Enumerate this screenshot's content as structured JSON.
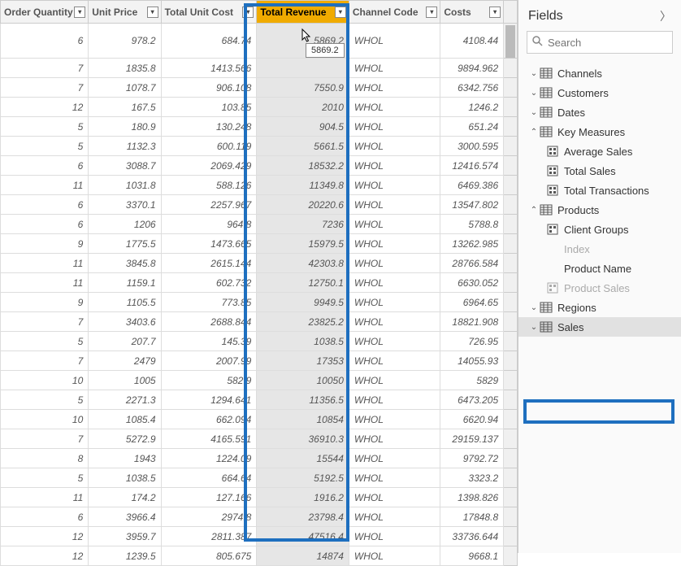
{
  "columns": {
    "order_quantity": "Order Quantity",
    "unit_price": "Unit Price",
    "total_unit_cost": "Total Unit Cost",
    "total_revenue": "Total Revenue",
    "channel_code": "Channel Code",
    "costs": "Costs"
  },
  "selected_column": "total_revenue",
  "highlight_color": "#1e6fbf",
  "selected_header_color": "#f0ab00",
  "tooltip_value": "5869.2",
  "rows": [
    {
      "oq": "6",
      "up": "978.2",
      "tuc": "684.74",
      "tr": "5869.2",
      "cc": "WHOL",
      "co": "4108.44"
    },
    {
      "oq": "7",
      "up": "1835.8",
      "tuc": "1413.566",
      "tr": "",
      "cc": "WHOL",
      "co": "9894.962"
    },
    {
      "oq": "7",
      "up": "1078.7",
      "tuc": "906.108",
      "tr": "7550.9",
      "cc": "WHOL",
      "co": "6342.756"
    },
    {
      "oq": "12",
      "up": "167.5",
      "tuc": "103.85",
      "tr": "2010",
      "cc": "WHOL",
      "co": "1246.2"
    },
    {
      "oq": "5",
      "up": "180.9",
      "tuc": "130.248",
      "tr": "904.5",
      "cc": "WHOL",
      "co": "651.24"
    },
    {
      "oq": "5",
      "up": "1132.3",
      "tuc": "600.119",
      "tr": "5661.5",
      "cc": "WHOL",
      "co": "3000.595"
    },
    {
      "oq": "6",
      "up": "3088.7",
      "tuc": "2069.429",
      "tr": "18532.2",
      "cc": "WHOL",
      "co": "12416.574"
    },
    {
      "oq": "11",
      "up": "1031.8",
      "tuc": "588.126",
      "tr": "11349.8",
      "cc": "WHOL",
      "co": "6469.386"
    },
    {
      "oq": "6",
      "up": "3370.1",
      "tuc": "2257.967",
      "tr": "20220.6",
      "cc": "WHOL",
      "co": "13547.802"
    },
    {
      "oq": "6",
      "up": "1206",
      "tuc": "964.8",
      "tr": "7236",
      "cc": "WHOL",
      "co": "5788.8"
    },
    {
      "oq": "9",
      "up": "1775.5",
      "tuc": "1473.665",
      "tr": "15979.5",
      "cc": "WHOL",
      "co": "13262.985"
    },
    {
      "oq": "11",
      "up": "3845.8",
      "tuc": "2615.144",
      "tr": "42303.8",
      "cc": "WHOL",
      "co": "28766.584"
    },
    {
      "oq": "11",
      "up": "1159.1",
      "tuc": "602.732",
      "tr": "12750.1",
      "cc": "WHOL",
      "co": "6630.052"
    },
    {
      "oq": "9",
      "up": "1105.5",
      "tuc": "773.85",
      "tr": "9949.5",
      "cc": "WHOL",
      "co": "6964.65"
    },
    {
      "oq": "7",
      "up": "3403.6",
      "tuc": "2688.844",
      "tr": "23825.2",
      "cc": "WHOL",
      "co": "18821.908"
    },
    {
      "oq": "5",
      "up": "207.7",
      "tuc": "145.39",
      "tr": "1038.5",
      "cc": "WHOL",
      "co": "726.95"
    },
    {
      "oq": "7",
      "up": "2479",
      "tuc": "2007.99",
      "tr": "17353",
      "cc": "WHOL",
      "co": "14055.93"
    },
    {
      "oq": "10",
      "up": "1005",
      "tuc": "582.9",
      "tr": "10050",
      "cc": "WHOL",
      "co": "5829"
    },
    {
      "oq": "5",
      "up": "2271.3",
      "tuc": "1294.641",
      "tr": "11356.5",
      "cc": "WHOL",
      "co": "6473.205"
    },
    {
      "oq": "10",
      "up": "1085.4",
      "tuc": "662.094",
      "tr": "10854",
      "cc": "WHOL",
      "co": "6620.94"
    },
    {
      "oq": "7",
      "up": "5272.9",
      "tuc": "4165.591",
      "tr": "36910.3",
      "cc": "WHOL",
      "co": "29159.137"
    },
    {
      "oq": "8",
      "up": "1943",
      "tuc": "1224.09",
      "tr": "15544",
      "cc": "WHOL",
      "co": "9792.72"
    },
    {
      "oq": "5",
      "up": "1038.5",
      "tuc": "664.64",
      "tr": "5192.5",
      "cc": "WHOL",
      "co": "3323.2"
    },
    {
      "oq": "11",
      "up": "174.2",
      "tuc": "127.166",
      "tr": "1916.2",
      "cc": "WHOL",
      "co": "1398.826"
    },
    {
      "oq": "6",
      "up": "3966.4",
      "tuc": "2974.8",
      "tr": "23798.4",
      "cc": "WHOL",
      "co": "17848.8"
    },
    {
      "oq": "12",
      "up": "3959.7",
      "tuc": "2811.387",
      "tr": "47516.4",
      "cc": "WHOL",
      "co": "33736.644"
    },
    {
      "oq": "12",
      "up": "1239.5",
      "tuc": "805.675",
      "tr": "14874",
      "cc": "WHOL",
      "co": "9668.1"
    }
  ],
  "fields_pane": {
    "title": "Fields",
    "search_placeholder": "Search",
    "tables": {
      "channels": "Channels",
      "customers": "Customers",
      "dates": "Dates",
      "key_measures": "Key Measures",
      "products": "Products",
      "regions": "Regions",
      "sales": "Sales"
    },
    "key_measures_fields": {
      "average_sales": "Average Sales",
      "total_sales": "Total Sales",
      "total_transactions": "Total Transactions"
    },
    "products_fields": {
      "client_groups": "Client Groups",
      "index": "Index",
      "product_name": "Product Name",
      "product_sales": "Product Sales"
    },
    "selected_table": "sales"
  }
}
